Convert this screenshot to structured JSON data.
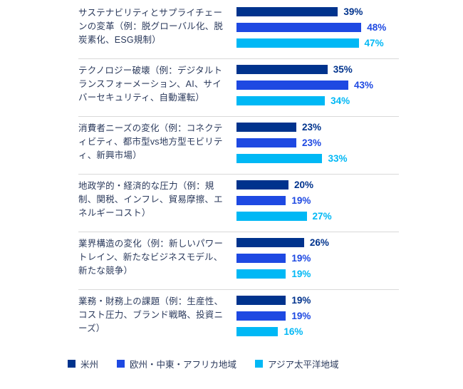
{
  "chart_data": {
    "type": "bar",
    "orientation": "horizontal",
    "title": "",
    "unit": "%",
    "grid": "off",
    "value_labels": "on",
    "legend_position": "bottom",
    "xlim": [
      0,
      50
    ],
    "categories": [
      "サステナビリティとサプライチェーンの変革（例：脱グローバル化、脱炭素化、ESG規制）",
      "テクノロジー破壊（例：デジタルトランスフォーメーション、AI、サイバーセキュリティ、自動運転）",
      "消費者ニーズの変化（例：コネクティビティ、都市型vs地方型モビリティ、新興市場）",
      "地政学的・経済的な圧力（例：規制、関税、インフレ、貿易摩擦、エネルギーコスト）",
      "業界構造の変化（例：新しいパワートレイン、新たなビジネスモデル、新たな競争）",
      "業務・財務上の課題（例：生産性、コスト圧力、ブランド戦略、投資ニーズ）"
    ],
    "series": [
      {
        "name": "米州",
        "color": "#00338d",
        "values": [
          39,
          35,
          23,
          20,
          26,
          19
        ]
      },
      {
        "name": "欧州・中東・アフリカ地域",
        "color": "#1e49e2",
        "values": [
          48,
          43,
          23,
          19,
          19,
          19
        ]
      },
      {
        "name": "アジア太平洋地域",
        "color": "#00b8f5",
        "values": [
          47,
          34,
          33,
          27,
          19,
          16
        ]
      }
    ]
  },
  "legend": {
    "items": [
      {
        "label": "米州",
        "color": "#00338d"
      },
      {
        "label": "欧州・中東・アフリカ地域",
        "color": "#1e49e2"
      },
      {
        "label": "アジア太平洋地域",
        "color": "#00b8f5"
      }
    ]
  }
}
